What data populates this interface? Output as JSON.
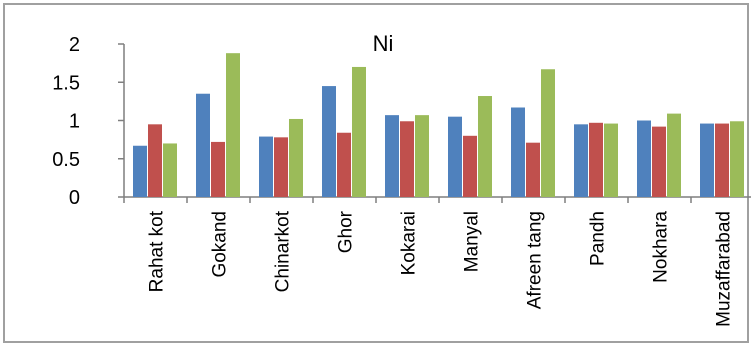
{
  "chart_data": {
    "type": "bar",
    "title": "Ni",
    "xlabel": "",
    "ylabel": "",
    "ylim": [
      0,
      2
    ],
    "yticks": [
      0,
      0.5,
      1,
      1.5,
      2
    ],
    "ytick_labels": [
      "0",
      "0.5",
      "1",
      "1.5",
      "2"
    ],
    "categories": [
      "Rahat kot",
      "Gokand",
      "Chinarkot",
      "Ghor",
      "Kokarai",
      "Manyal",
      "Afreen tang",
      "Pandh",
      "Nokhara",
      "Muzaffarabad"
    ],
    "series": [
      {
        "values": [
          0.67,
          1.35,
          0.79,
          1.45,
          1.07,
          1.05,
          1.17,
          0.95,
          1.0,
          0.96
        ],
        "color": "#4f81bd"
      },
      {
        "values": [
          0.95,
          0.72,
          0.78,
          0.84,
          0.99,
          0.8,
          0.71,
          0.97,
          0.92,
          0.96
        ],
        "color": "#c0504d"
      },
      {
        "values": [
          0.7,
          1.88,
          1.02,
          1.7,
          1.07,
          1.32,
          1.67,
          0.96,
          1.09,
          0.99
        ],
        "color": "#9bbb59"
      }
    ],
    "grid": false,
    "legend": "none"
  }
}
